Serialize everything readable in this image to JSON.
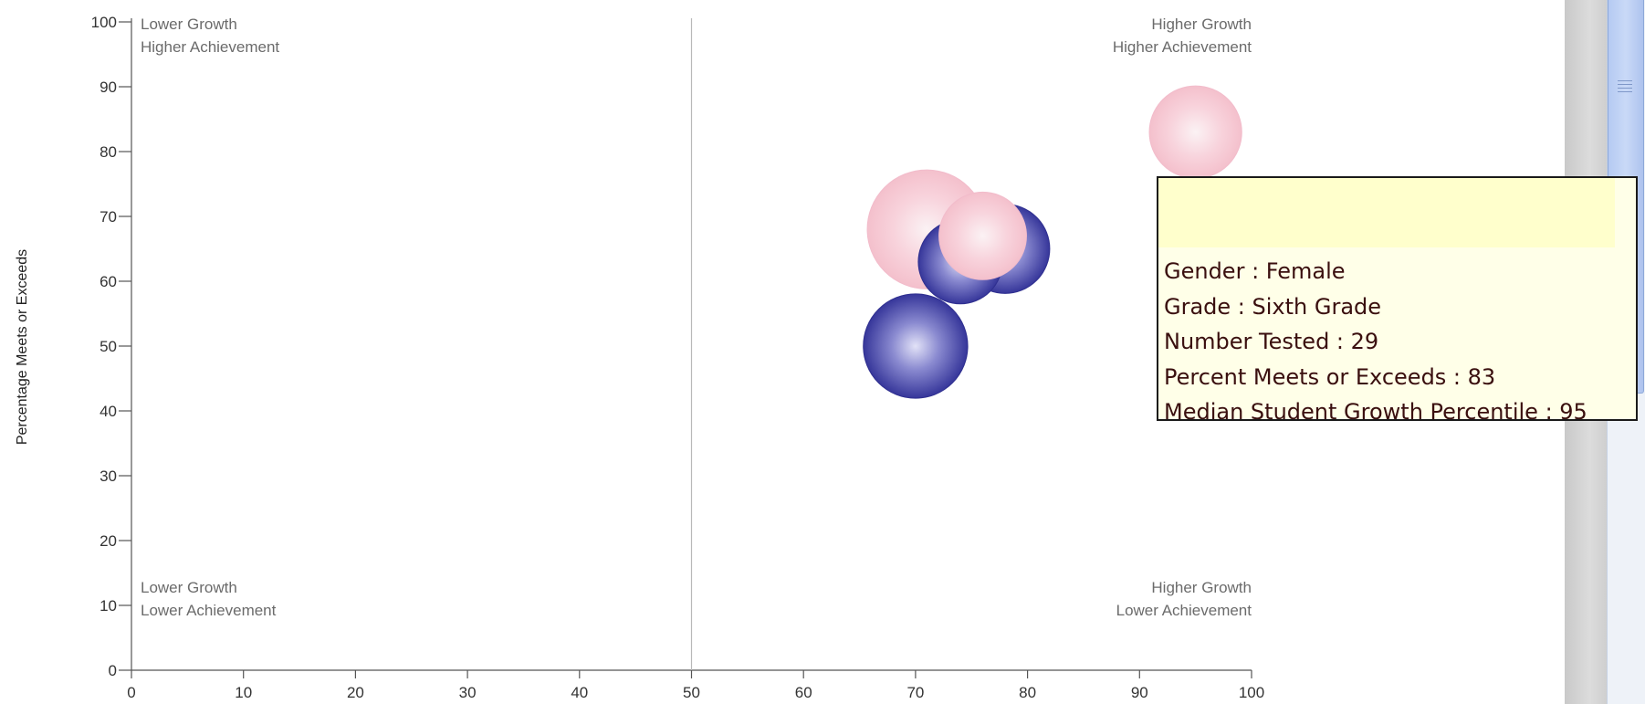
{
  "chart_data": {
    "type": "scatter",
    "variant": "bubble",
    "ylabel": "Percentage Meets or Exceeds",
    "xlabel": "",
    "xlim": [
      0,
      100
    ],
    "ylim": [
      0,
      100
    ],
    "x_ticks": [
      0,
      10,
      20,
      30,
      40,
      50,
      60,
      70,
      80,
      90,
      100
    ],
    "y_ticks": [
      0,
      10,
      20,
      30,
      40,
      50,
      60,
      70,
      80,
      90,
      100
    ],
    "reference_line_x": 50,
    "grid": false,
    "quadrant_labels": {
      "top_left": [
        "Lower Growth",
        "Higher Achievement"
      ],
      "top_right": [
        "Higher Growth",
        "Higher Achievement"
      ],
      "bottom_left": [
        "Lower Growth",
        "Lower Achievement"
      ],
      "bottom_right": [
        "Higher Growth",
        "Lower Achievement"
      ]
    },
    "series": [
      {
        "color": "#3a3a9e",
        "points": [
          {
            "x": 70,
            "y": 50,
            "number_tested": 37
          },
          {
            "x": 78,
            "y": 65,
            "number_tested": 27
          },
          {
            "x": 74,
            "y": 63,
            "number_tested": 24
          }
        ]
      },
      {
        "color": "#f5c6d0",
        "points": [
          {
            "x": 71,
            "y": 68,
            "number_tested": 48
          },
          {
            "x": 76,
            "y": 67,
            "number_tested": 26
          },
          {
            "x": 95,
            "y": 83,
            "number_tested": 29
          }
        ]
      }
    ]
  },
  "tooltip": {
    "lines": [
      "Gender : Female",
      "Grade : Sixth Grade",
      "Number Tested : 29",
      "Percent Meets or Exceeds : 83",
      "Median Student Growth Percentile : 95"
    ]
  }
}
